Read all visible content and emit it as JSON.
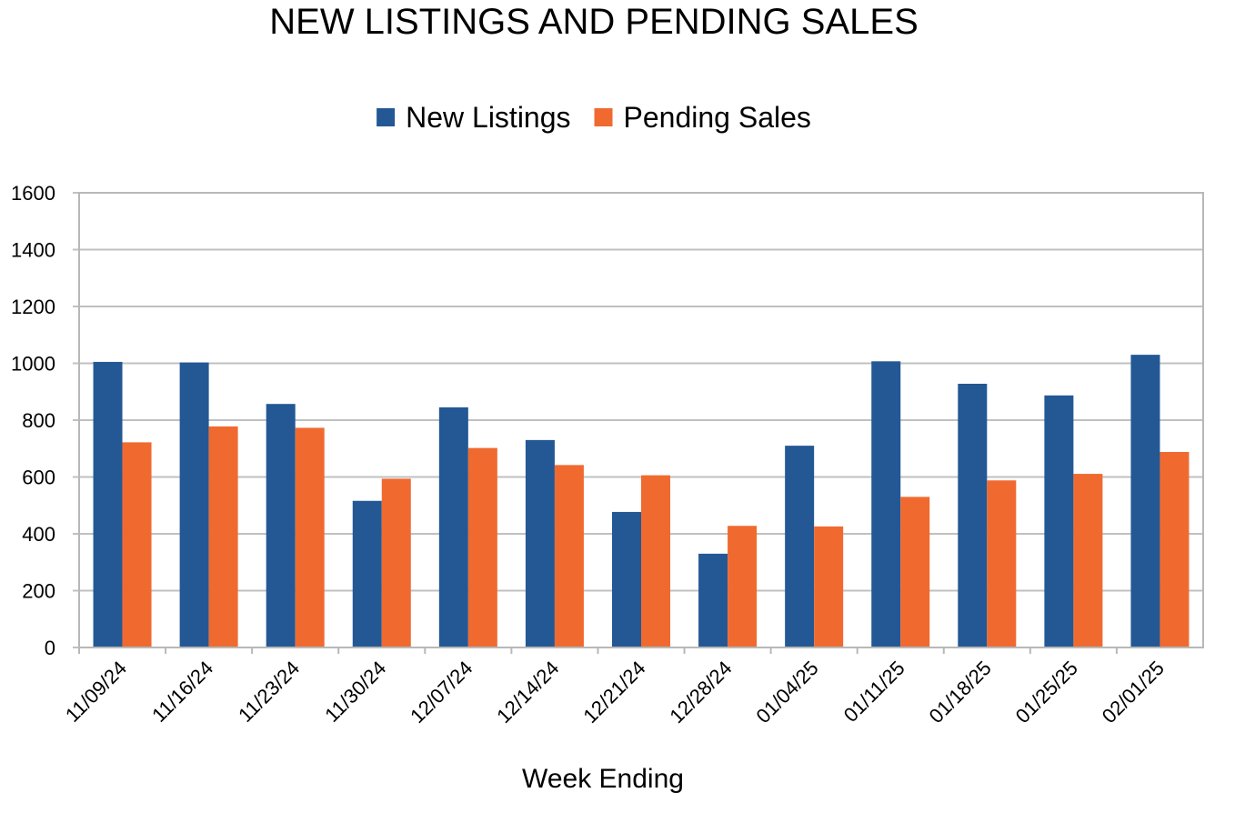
{
  "chart_data": {
    "type": "bar",
    "title": "NEW LISTINGS AND PENDING SALES",
    "xlabel": "Week Ending",
    "ylabel": "",
    "ylim": [
      0,
      1600
    ],
    "yticks": [
      0,
      200,
      400,
      600,
      800,
      1000,
      1200,
      1400,
      1600
    ],
    "grid": true,
    "legend_position": "top-center",
    "categories": [
      "11/09/24",
      "11/16/24",
      "11/23/24",
      "11/30/24",
      "12/07/24",
      "12/14/24",
      "12/21/24",
      "12/28/24",
      "01/04/25",
      "01/11/25",
      "01/18/25",
      "01/25/25",
      "02/01/25"
    ],
    "series": [
      {
        "name": "New Listings",
        "color": "#235895",
        "values": [
          1005,
          1003,
          857,
          516,
          845,
          730,
          477,
          330,
          710,
          1007,
          928,
          887,
          1030
        ]
      },
      {
        "name": "Pending Sales",
        "color": "#f06a30",
        "values": [
          722,
          778,
          773,
          594,
          702,
          642,
          606,
          428,
          426,
          530,
          588,
          611,
          688
        ]
      }
    ]
  }
}
